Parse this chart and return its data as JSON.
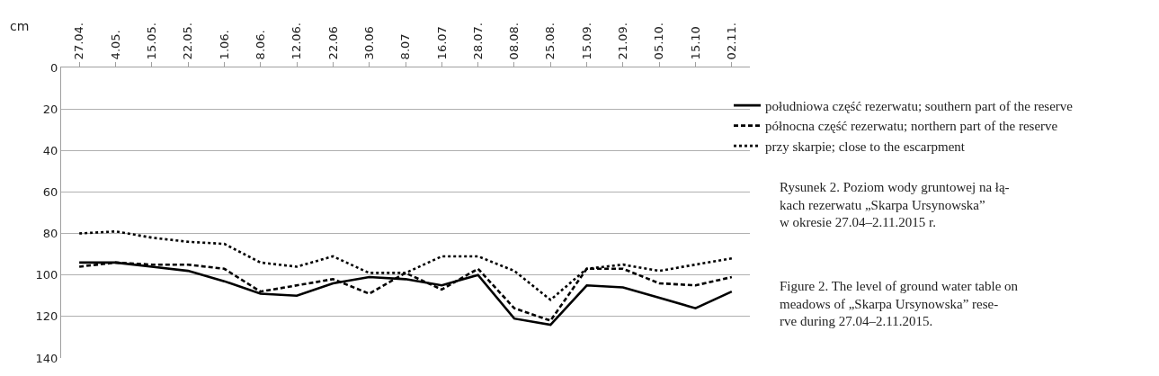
{
  "chart_data": {
    "type": "line",
    "ylabel": "cm",
    "categories": [
      "27.04.",
      "4.05.",
      "15.05.",
      "22.05.",
      "1.06.",
      "8.06.",
      "12.06.",
      "22.06",
      "30.06",
      "8.07",
      "16.07",
      "28.07.",
      "08.08.",
      "25.08.",
      "15.09.",
      "21.09.",
      "05.10.",
      "15.10",
      "02.11."
    ],
    "series": [
      {
        "name": "południowa część rezerwatu; southern part of the reserve",
        "color": "#000000",
        "line_style": "solid",
        "values": [
          94,
          94,
          96,
          98,
          103,
          109,
          110,
          104,
          101,
          102,
          105,
          100,
          121,
          124,
          105,
          106,
          111,
          116,
          108
        ]
      },
      {
        "name": "północna część rezerwatu; northern part of the reserve",
        "color": "#000000",
        "line_style": "dashed",
        "values": [
          96,
          94,
          95,
          95,
          97,
          108,
          105,
          102,
          109,
          99,
          107,
          97,
          116,
          122,
          97,
          97,
          104,
          105,
          101
        ]
      },
      {
        "name": "przy skarpie; close to the escarpment",
        "color": "#000000",
        "line_style": "dotted",
        "values": [
          80,
          79,
          82,
          84,
          85,
          94,
          96,
          91,
          99,
          99,
          91,
          91,
          98,
          112,
          97,
          95,
          98,
          95,
          92
        ]
      }
    ],
    "ylim": [
      140,
      0
    ],
    "yticks": [
      0,
      20,
      40,
      60,
      80,
      100,
      120,
      140
    ],
    "grid": "y",
    "legend": "right",
    "marker": "none",
    "annotations": [
      "Rysunek 2. Poziom wody gruntowej na łą-\nkach rezerwatu „Skarpa Ursynowska”\nw okresie 27.04–2.11.2015 r.",
      "Figure 2. The level of ground water table on\nmeadows of „Skarpa Ursynowska” rese-\nrve during 27.04–2.11.2015."
    ]
  }
}
